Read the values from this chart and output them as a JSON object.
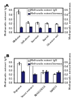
{
  "panel_A": {
    "categories": [
      "Maltose",
      "Cellulose",
      "Sucrose",
      "Starch",
      "Glucose sol"
    ],
    "methanolic_extract": [
      0.47,
      0.23,
      0.22,
      0.21,
      0.2
    ],
    "extract_biomass_ratio": [
      0.12,
      0.13,
      0.1,
      0.1,
      0.13
    ],
    "error_extract": [
      0.05,
      0.02,
      0.02,
      0.01,
      0.01
    ],
    "error_ratio": [
      0.01,
      0.01,
      0.01,
      0.005,
      0.01
    ],
    "ylabel_left": "Methanolic extract (g/l)",
    "ylabel_right": "Methanolic extract/biomass",
    "ylim_left": [
      0,
      0.55
    ],
    "yticks_left": [
      0.0,
      0.1,
      0.2,
      0.3,
      0.4,
      0.5
    ],
    "label": "A"
  },
  "panel_B": {
    "categories": [
      "Peptone",
      "Yeast extract",
      "(NH4)2SO4",
      "NaNO3"
    ],
    "methanolic_extract": [
      0.48,
      0.45,
      0.27,
      0.22
    ],
    "extract_biomass_ratio": [
      0.28,
      0.21,
      0.28,
      0.27
    ],
    "error_extract": [
      0.03,
      0.02,
      0.04,
      0.01
    ],
    "error_ratio": [
      0.02,
      0.02,
      0.03,
      0.02
    ],
    "ylabel_left": "Methanolic extract (g/l)",
    "ylabel_right": "Methanolic extract/biomass",
    "ylim_left": [
      0,
      0.6
    ],
    "yticks_left": [
      0.0,
      0.1,
      0.2,
      0.3,
      0.4,
      0.5
    ],
    "label": "B"
  },
  "legend_label1": "Methanolic extract (g/l)",
  "legend_label2": "Methanolic extract/biomass",
  "bar_color_open": "#ffffff",
  "bar_color_filled": "#1a1a6e",
  "bar_edgecolor": "#444444",
  "bar_width": 0.32,
  "figsize": [
    1.12,
    1.5
  ],
  "dpi": 100,
  "fontsize_tick": 2.8,
  "fontsize_label": 2.8,
  "fontsize_legend": 2.4,
  "fontsize_panel": 4.5
}
